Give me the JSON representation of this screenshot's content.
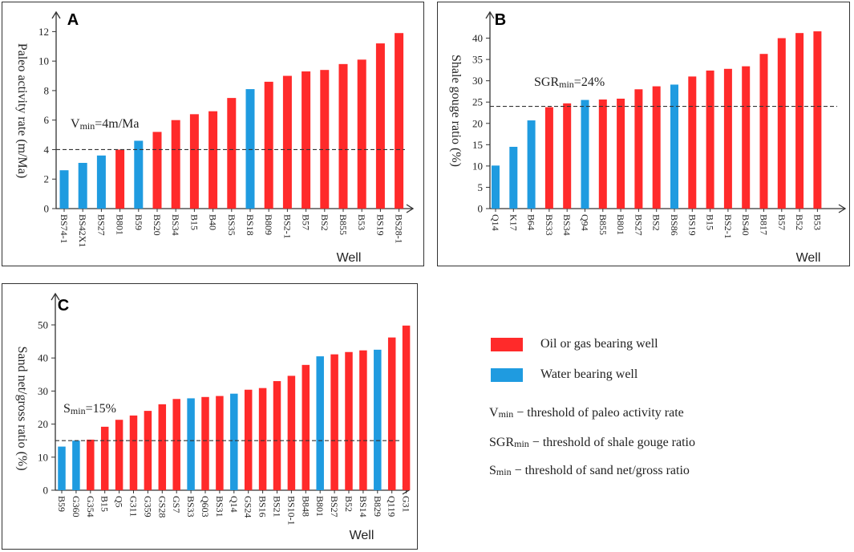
{
  "colors": {
    "oil": "#ff2a2a",
    "water": "#1f9be0"
  },
  "legend": {
    "oil_label": "Oil or gas bearing well",
    "water_label": "Water bearing well",
    "definitions": [
      {
        "sym": "V",
        "sub": "min",
        "text": " − threshold of paleo activity rate"
      },
      {
        "sym": "SGR",
        "sub": "min",
        "text": " − threshold of shale gouge ratio"
      },
      {
        "sym": "S",
        "sub": "min",
        "text": " − threshold of sand net/gross ratio"
      }
    ]
  },
  "chart_data": [
    {
      "id": "A",
      "letter": "A",
      "type": "bar",
      "ylabel": "Paleo activity rate (m/Ma)",
      "xlabel": "Well",
      "ylim": [
        0,
        13
      ],
      "yticks": [
        0,
        2,
        4,
        6,
        8,
        10,
        12
      ],
      "threshold": {
        "value": 4,
        "sym": "V",
        "sub": "min",
        "rest": "=4m/Ma"
      },
      "categories": [
        "BS74-1",
        "BS42X1",
        "BS27",
        "B801",
        "B59",
        "BS20",
        "BS34",
        "B15",
        "B40",
        "BS35",
        "BS18",
        "B809",
        "BS2-1",
        "B57",
        "BS2",
        "B855",
        "B53",
        "BS19",
        "BS28-1"
      ],
      "values": [
        2.6,
        3.1,
        3.6,
        4.0,
        4.6,
        5.2,
        6.0,
        6.4,
        6.6,
        7.5,
        8.1,
        8.6,
        9.0,
        9.3,
        9.4,
        9.8,
        10.1,
        11.2,
        11.9
      ],
      "kinds": [
        "water",
        "water",
        "water",
        "oil",
        "water",
        "oil",
        "oil",
        "oil",
        "oil",
        "oil",
        "water",
        "oil",
        "oil",
        "oil",
        "oil",
        "oil",
        "oil",
        "oil",
        "oil"
      ]
    },
    {
      "id": "B",
      "letter": "B",
      "type": "bar",
      "ylabel": "Shale gouge ratio (%)",
      "xlabel": "Well",
      "ylim": [
        0,
        45
      ],
      "yticks": [
        0,
        5,
        10,
        15,
        20,
        25,
        30,
        35,
        40
      ],
      "threshold": {
        "value": 24,
        "sym": "SGR",
        "sub": "min",
        "rest": "=24%"
      },
      "categories": [
        "Q14",
        "K17",
        "B64",
        "BS33",
        "BS34",
        "Q94",
        "B855",
        "B801",
        "BS27",
        "BS2",
        "BS86",
        "BS19",
        "B15",
        "BS2-1",
        "BS40",
        "B817",
        "B57",
        "B52",
        "B53"
      ],
      "values": [
        10.1,
        14.5,
        20.7,
        23.8,
        24.7,
        25.5,
        25.6,
        25.8,
        28.0,
        28.7,
        29.1,
        31.0,
        32.4,
        32.8,
        33.4,
        36.3,
        40.0,
        41.2,
        41.6
      ],
      "kinds": [
        "water",
        "water",
        "water",
        "oil",
        "oil",
        "water",
        "oil",
        "oil",
        "oil",
        "oil",
        "water",
        "oil",
        "oil",
        "oil",
        "oil",
        "oil",
        "oil",
        "oil",
        "oil"
      ]
    },
    {
      "id": "C",
      "letter": "C",
      "type": "bar",
      "ylabel": "Sand net/gross ratio (%)",
      "xlabel": "Well",
      "ylim": [
        0,
        58
      ],
      "yticks": [
        0,
        10,
        20,
        30,
        40,
        50
      ],
      "threshold": {
        "value": 15,
        "sym": "S",
        "sub": "min",
        "rest": "=15%"
      },
      "categories": [
        "B59",
        "G360",
        "G354",
        "B15",
        "Q5",
        "G311",
        "G359",
        "GS28",
        "GS7",
        "BS33",
        "Q603",
        "BS31",
        "Q14",
        "GS24",
        "BS16",
        "BS21",
        "BS10-1",
        "B848",
        "B801",
        "BS27",
        "B52",
        "BS14",
        "B829",
        "Q119",
        "G31"
      ],
      "values": [
        13.2,
        15.0,
        15.3,
        19.2,
        21.3,
        22.6,
        24.0,
        26.0,
        27.6,
        27.8,
        28.2,
        28.5,
        29.2,
        30.4,
        30.9,
        33.0,
        34.6,
        37.9,
        40.5,
        41.1,
        41.8,
        42.3,
        42.5,
        46.2,
        49.8
      ],
      "kinds": [
        "water",
        "water",
        "oil",
        "oil",
        "oil",
        "oil",
        "oil",
        "oil",
        "oil",
        "water",
        "oil",
        "oil",
        "water",
        "oil",
        "oil",
        "oil",
        "oil",
        "oil",
        "water",
        "oil",
        "oil",
        "oil",
        "water",
        "oil",
        "oil"
      ]
    }
  ]
}
